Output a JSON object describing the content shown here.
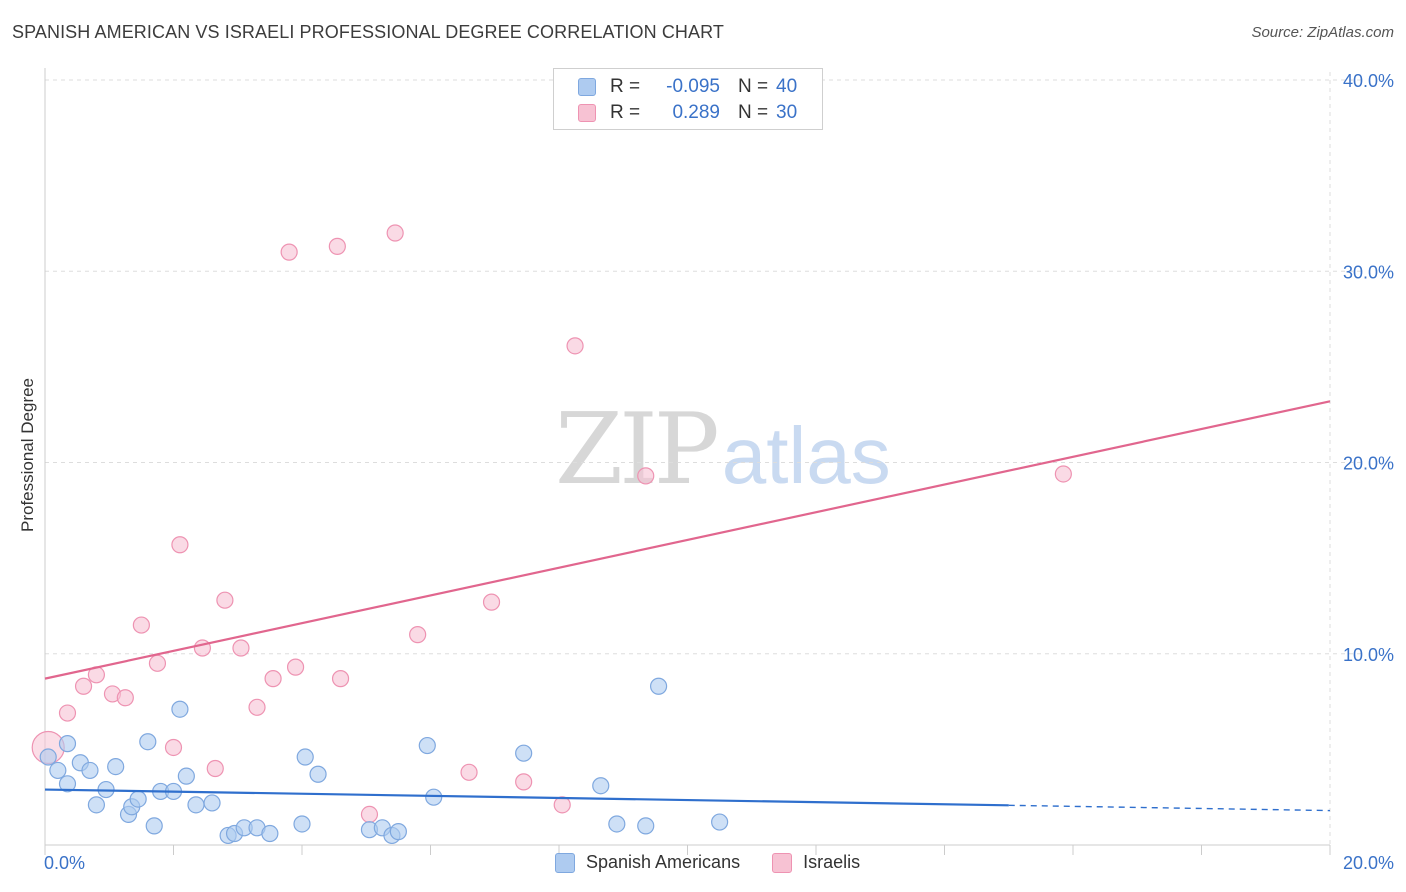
{
  "header": {
    "title": "SPANISH AMERICAN VS ISRAELI PROFESSIONAL DEGREE CORRELATION CHART",
    "source": "Source: ZipAtlas.com"
  },
  "watermark": {
    "zip": "ZIP",
    "atlas": "atlas"
  },
  "legend_top": {
    "rows": [
      {
        "r_label": "R =",
        "r_value": "-0.095",
        "n_label": "N =",
        "n_value": "40"
      },
      {
        "r_label": "R =",
        "r_value": "0.289",
        "n_label": "N =",
        "n_value": "30"
      }
    ]
  },
  "legend_bottom": {
    "items": [
      {
        "label": "Spanish Americans"
      },
      {
        "label": "Israelis"
      }
    ]
  },
  "colors": {
    "blue_fill": "#aecbf0",
    "blue_stroke": "#7fa8df",
    "blue_line": "#2f6fcd",
    "pink_fill": "#f7c2d3",
    "pink_stroke": "#ee93b2",
    "pink_line": "#e1668e",
    "tick_label": "#3a72c8",
    "grid": "#dddddd"
  },
  "chart_data": {
    "type": "scatter",
    "title": "SPANISH AMERICAN VS ISRAELI PROFESSIONAL DEGREE CORRELATION CHART",
    "xlabel": "",
    "ylabel": "Professional Degree",
    "xlim": [
      0,
      20
    ],
    "ylim": [
      0,
      40
    ],
    "x_tick_labels": [
      {
        "value": 0,
        "label": "0.0%"
      },
      {
        "value": 20,
        "label": "20.0%"
      }
    ],
    "y_tick_labels": [
      {
        "value": 10,
        "label": "10.0%"
      },
      {
        "value": 20,
        "label": "20.0%"
      },
      {
        "value": 30,
        "label": "30.0%"
      },
      {
        "value": 40,
        "label": "40.0%"
      }
    ],
    "grid": true,
    "series": [
      {
        "name": "Spanish Americans",
        "color": "blue",
        "r": -0.095,
        "n": 40,
        "trend": {
          "x_start": 0,
          "y_start": 2.9,
          "x_end_solid": 15.0,
          "x_end": 20,
          "y_end": 1.8
        },
        "points": [
          [
            0.05,
            4.6
          ],
          [
            0.2,
            3.9
          ],
          [
            0.35,
            5.3
          ],
          [
            0.35,
            3.2
          ],
          [
            0.55,
            4.3
          ],
          [
            0.7,
            3.9
          ],
          [
            0.8,
            2.1
          ],
          [
            0.95,
            2.9
          ],
          [
            1.1,
            4.1
          ],
          [
            1.3,
            1.6
          ],
          [
            1.35,
            2.0
          ],
          [
            1.45,
            2.4
          ],
          [
            1.6,
            5.4
          ],
          [
            1.7,
            1.0
          ],
          [
            1.8,
            2.8
          ],
          [
            2.0,
            2.8
          ],
          [
            2.1,
            7.1
          ],
          [
            2.2,
            3.6
          ],
          [
            2.35,
            2.1
          ],
          [
            2.6,
            2.2
          ],
          [
            2.85,
            0.5
          ],
          [
            2.95,
            0.6
          ],
          [
            3.1,
            0.9
          ],
          [
            3.3,
            0.9
          ],
          [
            3.5,
            0.6
          ],
          [
            4.0,
            1.1
          ],
          [
            4.05,
            4.6
          ],
          [
            4.25,
            3.7
          ],
          [
            5.05,
            0.8
          ],
          [
            5.25,
            0.9
          ],
          [
            5.4,
            0.5
          ],
          [
            5.5,
            0.7
          ],
          [
            5.95,
            5.2
          ],
          [
            6.05,
            2.5
          ],
          [
            7.45,
            4.8
          ],
          [
            8.65,
            3.1
          ],
          [
            8.9,
            1.1
          ],
          [
            9.35,
            1.0
          ],
          [
            9.55,
            8.3
          ],
          [
            10.5,
            1.2
          ]
        ]
      },
      {
        "name": "Israelis",
        "color": "pink",
        "r": 0.289,
        "n": 30,
        "trend": {
          "x_start": 0,
          "y_start": 8.7,
          "x_end": 20,
          "y_end": 23.2
        },
        "points": [
          [
            0.05,
            5.1
          ],
          [
            0.35,
            6.9
          ],
          [
            0.6,
            8.3
          ],
          [
            0.8,
            8.9
          ],
          [
            1.05,
            7.9
          ],
          [
            1.25,
            7.7
          ],
          [
            1.5,
            11.5
          ],
          [
            1.75,
            9.5
          ],
          [
            2.0,
            5.1
          ],
          [
            2.1,
            15.7
          ],
          [
            2.45,
            10.3
          ],
          [
            2.65,
            4.0
          ],
          [
            2.8,
            12.8
          ],
          [
            3.05,
            10.3
          ],
          [
            3.3,
            7.2
          ],
          [
            3.55,
            8.7
          ],
          [
            3.8,
            31.0
          ],
          [
            3.9,
            9.3
          ],
          [
            4.55,
            31.3
          ],
          [
            4.6,
            8.7
          ],
          [
            5.05,
            1.6
          ],
          [
            5.45,
            32.0
          ],
          [
            5.8,
            11.0
          ],
          [
            6.6,
            3.8
          ],
          [
            6.95,
            12.7
          ],
          [
            7.45,
            3.3
          ],
          [
            8.05,
            2.1
          ],
          [
            8.25,
            26.1
          ],
          [
            9.35,
            19.3
          ],
          [
            15.85,
            19.4
          ]
        ]
      }
    ]
  }
}
